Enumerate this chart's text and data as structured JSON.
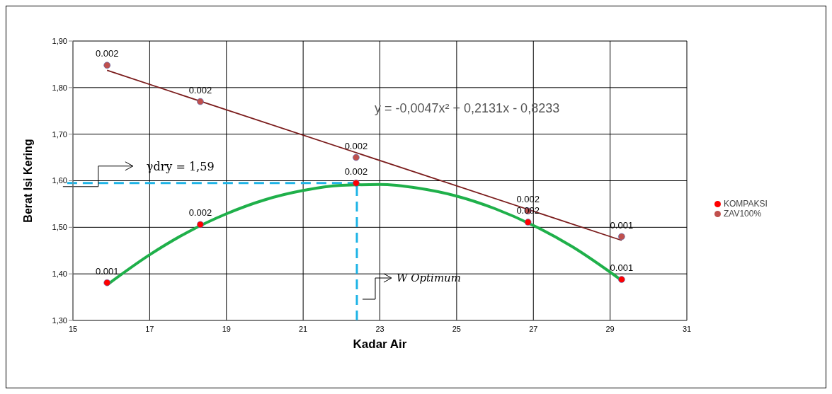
{
  "chart_data": {
    "type": "scatter",
    "xlabel": "Kadar Air",
    "ylabel": "Berat Isi Kering",
    "xlim": [
      15,
      31
    ],
    "xticks": [
      15,
      17,
      19,
      21,
      23,
      25,
      27,
      29,
      31
    ],
    "ylim": [
      1.3,
      1.9
    ],
    "yticks": [
      {
        "value": 1.3,
        "label": "1,30"
      },
      {
        "value": 1.4,
        "label": "1,40"
      },
      {
        "value": 1.5,
        "label": "1,50"
      },
      {
        "value": 1.6,
        "label": "1,60"
      },
      {
        "value": 1.7,
        "label": "1,70"
      },
      {
        "value": 1.8,
        "label": "1,80"
      },
      {
        "value": 1.9,
        "label": "1,90"
      }
    ],
    "grid": true,
    "legend": "right",
    "marker": "circle",
    "series": [
      {
        "type": "line",
        "marker": "none",
        "color": "#1fb04a",
        "x": [
          15.9,
          17,
          18,
          19,
          20,
          21,
          22,
          23,
          24,
          25,
          26,
          27,
          28,
          29.3
        ],
        "values": [
          1.377,
          1.441,
          1.49,
          1.529,
          1.559,
          1.579,
          1.59,
          1.592,
          1.584,
          1.567,
          1.54,
          1.504,
          1.459,
          1.386
        ]
      },
      {
        "type": "line",
        "marker": "none",
        "color": "#7b1c1c",
        "x": [
          15.89,
          29.3
        ],
        "values": [
          1.837,
          1.472
        ]
      },
      {
        "name": "KOMPAKSI",
        "color": "#ff0000",
        "x": [
          15.89,
          18.32,
          22.38,
          26.86,
          29.3
        ],
        "values": [
          1.381,
          1.506,
          1.595,
          1.511,
          1.388
        ]
      },
      {
        "name": "ZAV100%",
        "color": "#c0504d",
        "x": [
          15.89,
          18.32,
          22.38,
          26.86,
          29.3
        ],
        "values": [
          1.848,
          1.77,
          1.65,
          1.535,
          1.48
        ]
      }
    ],
    "ref_lines": [
      {
        "axis": "y",
        "value": 1.595,
        "label": "γdry = 1,59",
        "color": "#1fb4e6",
        "line_style": "dashed"
      },
      {
        "axis": "x",
        "value": 22.4,
        "label": "W Optimum",
        "color": "#1fb4e6",
        "line_style": "dashed"
      }
    ],
    "annotations": [
      "y = -0,0047x² + 0,2131x - 0,8233",
      {
        "text": "0.001",
        "x": 15.89,
        "y": 1.381
      },
      {
        "text": "0.002",
        "x": 18.32,
        "y": 1.506
      },
      {
        "text": "0.002",
        "x": 22.38,
        "y": 1.595
      },
      {
        "text": "0.002",
        "x": 26.86,
        "y": 1.511
      },
      {
        "text": "0.001",
        "x": 29.3,
        "y": 1.388
      },
      {
        "text": "0.002",
        "x": 15.89,
        "y": 1.848
      },
      {
        "text": "0.002",
        "x": 18.32,
        "y": 1.77
      },
      {
        "text": "0.002",
        "x": 22.38,
        "y": 1.65
      },
      {
        "text": "0.002",
        "x": 26.86,
        "y": 1.535
      },
      {
        "text": "0.001",
        "x": 29.3,
        "y": 1.48
      }
    ]
  }
}
